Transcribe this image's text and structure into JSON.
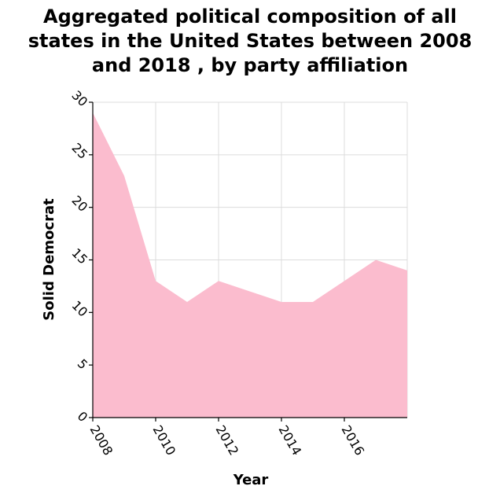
{
  "title_lines": [
    "Aggregated political composition of all",
    "states in the United States between 2008",
    "and 2018 , by party affiliation"
  ],
  "chart_data": {
    "type": "area",
    "title": "Aggregated political composition of all states in the United States between 2008 and 2018 , by party affiliation",
    "xlabel": "Year",
    "ylabel": "Solid Democrat",
    "x": [
      2008,
      2009,
      2010,
      2011,
      2012,
      2013,
      2014,
      2015,
      2016,
      2017,
      2018
    ],
    "series": [
      {
        "values": [
          29,
          23,
          13,
          11,
          13,
          12,
          11,
          11,
          13,
          15,
          14
        ]
      }
    ],
    "xlim": [
      2008,
      2018
    ],
    "ylim": [
      0,
      30
    ],
    "xticks": [
      2008,
      2010,
      2012,
      2014,
      2016
    ],
    "yticks": [
      0,
      5,
      10,
      15,
      20,
      25,
      30
    ],
    "grid": true,
    "fill_color": "#fbbcce",
    "grid_color": "#dcdcdc",
    "axis_color": "#000000"
  }
}
